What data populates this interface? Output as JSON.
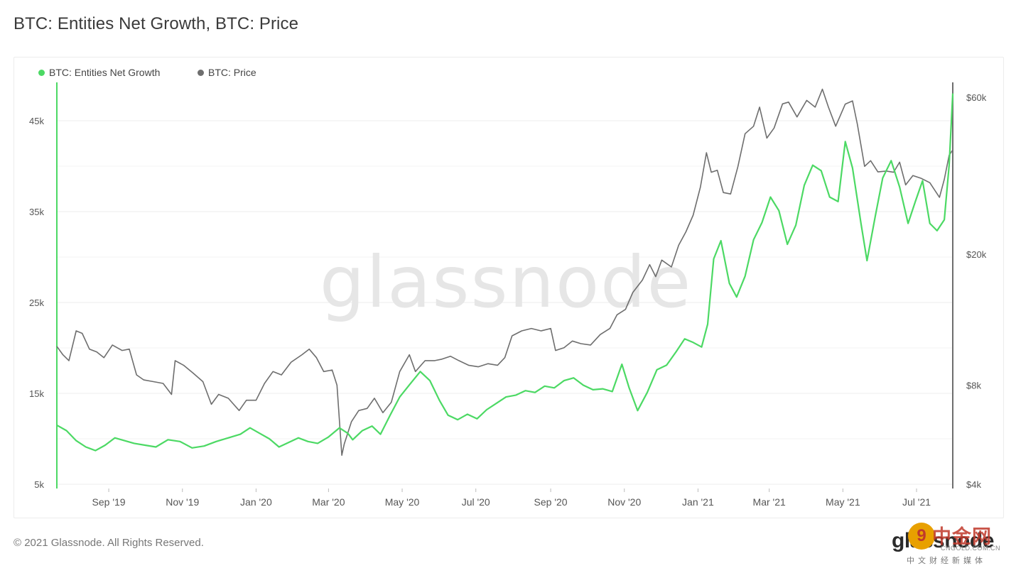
{
  "page": {
    "title": "BTC: Entities Net Growth, BTC: Price",
    "copyright": "© 2021 Glassnode. All Rights Reserved.",
    "brand_logo": "glassnode",
    "watermark_text": "glassnode"
  },
  "overlay_watermark": {
    "main": "中金网",
    "url": "CNGOLD.COM.CN",
    "sub": "中文财经新媒体"
  },
  "colors": {
    "growth": "#4cd964",
    "price": "#6e6e6e",
    "grid": "#ececec",
    "axis_text": "#555555",
    "watermark": "#e6e6e6"
  },
  "chart_data": {
    "type": "line",
    "title": "BTC: Entities Net Growth, BTC: Price",
    "legend": {
      "placement": "top-left",
      "entries": [
        "BTC: Entities Net Growth",
        "BTC: Price"
      ]
    },
    "grid": true,
    "x_ticks": [
      "Sep '19",
      "Nov '19",
      "Jan '20",
      "Mar '20",
      "May '20",
      "Jul '20",
      "Sep '20",
      "Nov '20",
      "Jan '21",
      "Mar '21",
      "May '21",
      "Jul '21"
    ],
    "x_range": [
      "2019-07-20",
      "2021-07-31"
    ],
    "y_left": {
      "ticks": [
        "5k",
        "15k",
        "25k",
        "35k",
        "45k"
      ],
      "range": [
        5000,
        50000
      ]
    },
    "y_right": {
      "ticks": [
        "$4k",
        "$8k",
        "$20k",
        "$60k"
      ],
      "scale": "log",
      "range": [
        4000,
        70000
      ]
    },
    "series": [
      {
        "name": "BTC: Entities Net Growth",
        "axis": "left",
        "points": [
          [
            "2019-07-20",
            11500
          ],
          [
            "2019-07-28",
            10900
          ],
          [
            "2019-08-05",
            9800
          ],
          [
            "2019-08-13",
            9100
          ],
          [
            "2019-08-21",
            8700
          ],
          [
            "2019-08-29",
            9300
          ],
          [
            "2019-09-06",
            10100
          ],
          [
            "2019-09-14",
            9800
          ],
          [
            "2019-09-22",
            9500
          ],
          [
            "2019-10-01",
            9300
          ],
          [
            "2019-10-10",
            9100
          ],
          [
            "2019-10-20",
            9900
          ],
          [
            "2019-10-30",
            9700
          ],
          [
            "2019-11-09",
            9000
          ],
          [
            "2019-11-19",
            9200
          ],
          [
            "2019-11-29",
            9700
          ],
          [
            "2019-12-09",
            10100
          ],
          [
            "2019-12-19",
            10500
          ],
          [
            "2019-12-27",
            11200
          ],
          [
            "2020-01-04",
            10600
          ],
          [
            "2020-01-12",
            10000
          ],
          [
            "2020-01-20",
            9100
          ],
          [
            "2020-01-28",
            9600
          ],
          [
            "2020-02-05",
            10100
          ],
          [
            "2020-02-13",
            9700
          ],
          [
            "2020-02-21",
            9500
          ],
          [
            "2020-03-01",
            10200
          ],
          [
            "2020-03-10",
            11200
          ],
          [
            "2020-03-17",
            10600
          ],
          [
            "2020-03-21",
            9900
          ],
          [
            "2020-03-29",
            10900
          ],
          [
            "2020-04-06",
            11400
          ],
          [
            "2020-04-13",
            10500
          ],
          [
            "2020-04-21",
            12600
          ],
          [
            "2020-04-29",
            14600
          ],
          [
            "2020-05-08",
            16100
          ],
          [
            "2020-05-16",
            17400
          ],
          [
            "2020-05-24",
            16400
          ],
          [
            "2020-06-01",
            14200
          ],
          [
            "2020-06-08",
            12600
          ],
          [
            "2020-06-16",
            12100
          ],
          [
            "2020-06-24",
            12700
          ],
          [
            "2020-07-02",
            12200
          ],
          [
            "2020-07-10",
            13200
          ],
          [
            "2020-07-18",
            13900
          ],
          [
            "2020-07-26",
            14600
          ],
          [
            "2020-08-03",
            14800
          ],
          [
            "2020-08-11",
            15300
          ],
          [
            "2020-08-19",
            15100
          ],
          [
            "2020-08-27",
            15800
          ],
          [
            "2020-09-04",
            15600
          ],
          [
            "2020-09-12",
            16400
          ],
          [
            "2020-09-20",
            16700
          ],
          [
            "2020-09-28",
            15900
          ],
          [
            "2020-10-06",
            15400
          ],
          [
            "2020-10-14",
            15500
          ],
          [
            "2020-10-22",
            15200
          ],
          [
            "2020-10-30",
            18200
          ],
          [
            "2020-11-05",
            15600
          ],
          [
            "2020-11-12",
            13100
          ],
          [
            "2020-11-20",
            15100
          ],
          [
            "2020-11-28",
            17600
          ],
          [
            "2020-12-06",
            18100
          ],
          [
            "2020-12-14",
            19600
          ],
          [
            "2020-12-21",
            21000
          ],
          [
            "2020-12-28",
            20600
          ],
          [
            "2021-01-04",
            20100
          ],
          [
            "2021-01-09",
            22600
          ],
          [
            "2021-01-14",
            29800
          ],
          [
            "2021-01-20",
            31800
          ],
          [
            "2021-01-27",
            27100
          ],
          [
            "2021-02-02",
            25600
          ],
          [
            "2021-02-09",
            27900
          ],
          [
            "2021-02-16",
            31900
          ],
          [
            "2021-02-23",
            33800
          ],
          [
            "2021-03-02",
            36600
          ],
          [
            "2021-03-09",
            35100
          ],
          [
            "2021-03-16",
            31400
          ],
          [
            "2021-03-23",
            33500
          ],
          [
            "2021-03-30",
            37900
          ],
          [
            "2021-04-06",
            40100
          ],
          [
            "2021-04-13",
            39500
          ],
          [
            "2021-04-20",
            36600
          ],
          [
            "2021-04-27",
            36100
          ],
          [
            "2021-05-03",
            42700
          ],
          [
            "2021-05-09",
            39800
          ],
          [
            "2021-05-16",
            33700
          ],
          [
            "2021-05-21",
            29600
          ],
          [
            "2021-05-28",
            34600
          ],
          [
            "2021-06-03",
            38700
          ],
          [
            "2021-06-10",
            40600
          ],
          [
            "2021-06-17",
            37700
          ],
          [
            "2021-06-24",
            33700
          ],
          [
            "2021-06-30",
            36100
          ],
          [
            "2021-07-06",
            38400
          ],
          [
            "2021-07-12",
            33700
          ],
          [
            "2021-07-18",
            32900
          ],
          [
            "2021-07-24",
            34100
          ],
          [
            "2021-07-28",
            40100
          ],
          [
            "2021-07-31",
            48000
          ]
        ]
      },
      {
        "name": "BTC: Price",
        "axis": "right",
        "points": [
          [
            "2019-07-20",
            10500
          ],
          [
            "2019-07-25",
            9900
          ],
          [
            "2019-07-30",
            9500
          ],
          [
            "2019-08-05",
            11700
          ],
          [
            "2019-08-10",
            11500
          ],
          [
            "2019-08-16",
            10300
          ],
          [
            "2019-08-22",
            10100
          ],
          [
            "2019-08-28",
            9700
          ],
          [
            "2019-09-04",
            10600
          ],
          [
            "2019-09-12",
            10200
          ],
          [
            "2019-09-18",
            10300
          ],
          [
            "2019-09-24",
            8600
          ],
          [
            "2019-09-30",
            8300
          ],
          [
            "2019-10-08",
            8200
          ],
          [
            "2019-10-16",
            8100
          ],
          [
            "2019-10-23",
            7500
          ],
          [
            "2019-10-26",
            9500
          ],
          [
            "2019-11-02",
            9200
          ],
          [
            "2019-11-10",
            8700
          ],
          [
            "2019-11-18",
            8200
          ],
          [
            "2019-11-25",
            7000
          ],
          [
            "2019-12-01",
            7500
          ],
          [
            "2019-12-09",
            7300
          ],
          [
            "2019-12-18",
            6700
          ],
          [
            "2019-12-24",
            7200
          ],
          [
            "2020-01-01",
            7200
          ],
          [
            "2020-01-08",
            8100
          ],
          [
            "2020-01-15",
            8800
          ],
          [
            "2020-01-22",
            8600
          ],
          [
            "2020-01-30",
            9400
          ],
          [
            "2020-02-08",
            9900
          ],
          [
            "2020-02-14",
            10300
          ],
          [
            "2020-02-20",
            9700
          ],
          [
            "2020-02-26",
            8800
          ],
          [
            "2020-03-04",
            8900
          ],
          [
            "2020-03-08",
            8000
          ],
          [
            "2020-03-12",
            4900
          ],
          [
            "2020-03-14",
            5300
          ],
          [
            "2020-03-20",
            6200
          ],
          [
            "2020-03-26",
            6700
          ],
          [
            "2020-04-02",
            6800
          ],
          [
            "2020-04-08",
            7300
          ],
          [
            "2020-04-15",
            6600
          ],
          [
            "2020-04-22",
            7100
          ],
          [
            "2020-04-29",
            8800
          ],
          [
            "2020-05-07",
            9900
          ],
          [
            "2020-05-12",
            8800
          ],
          [
            "2020-05-20",
            9500
          ],
          [
            "2020-05-28",
            9500
          ],
          [
            "2020-06-03",
            9600
          ],
          [
            "2020-06-10",
            9800
          ],
          [
            "2020-06-17",
            9500
          ],
          [
            "2020-06-25",
            9200
          ],
          [
            "2020-07-03",
            9100
          ],
          [
            "2020-07-11",
            9300
          ],
          [
            "2020-07-19",
            9200
          ],
          [
            "2020-07-25",
            9700
          ],
          [
            "2020-07-31",
            11300
          ],
          [
            "2020-08-08",
            11700
          ],
          [
            "2020-08-16",
            11900
          ],
          [
            "2020-08-24",
            11700
          ],
          [
            "2020-09-01",
            11900
          ],
          [
            "2020-09-05",
            10200
          ],
          [
            "2020-09-12",
            10400
          ],
          [
            "2020-09-19",
            10900
          ],
          [
            "2020-09-26",
            10700
          ],
          [
            "2020-10-04",
            10600
          ],
          [
            "2020-10-12",
            11400
          ],
          [
            "2020-10-20",
            11900
          ],
          [
            "2020-10-26",
            13100
          ],
          [
            "2020-11-02",
            13600
          ],
          [
            "2020-11-08",
            15300
          ],
          [
            "2020-11-16",
            16700
          ],
          [
            "2020-11-22",
            18600
          ],
          [
            "2020-11-27",
            17100
          ],
          [
            "2020-12-02",
            19200
          ],
          [
            "2020-12-10",
            18300
          ],
          [
            "2020-12-16",
            21300
          ],
          [
            "2020-12-22",
            23400
          ],
          [
            "2020-12-28",
            26300
          ],
          [
            "2021-01-03",
            32000
          ],
          [
            "2021-01-08",
            40700
          ],
          [
            "2021-01-12",
            35500
          ],
          [
            "2021-01-17",
            36000
          ],
          [
            "2021-01-22",
            30800
          ],
          [
            "2021-01-28",
            30500
          ],
          [
            "2021-02-03",
            36900
          ],
          [
            "2021-02-09",
            46500
          ],
          [
            "2021-02-16",
            49000
          ],
          [
            "2021-02-21",
            56000
          ],
          [
            "2021-02-27",
            45100
          ],
          [
            "2021-03-05",
            48400
          ],
          [
            "2021-03-12",
            57300
          ],
          [
            "2021-03-17",
            58000
          ],
          [
            "2021-03-24",
            52300
          ],
          [
            "2021-04-01",
            58700
          ],
          [
            "2021-04-08",
            56000
          ],
          [
            "2021-04-14",
            63500
          ],
          [
            "2021-04-19",
            56000
          ],
          [
            "2021-04-25",
            49000
          ],
          [
            "2021-05-03",
            57200
          ],
          [
            "2021-05-09",
            58500
          ],
          [
            "2021-05-13",
            49700
          ],
          [
            "2021-05-19",
            37000
          ],
          [
            "2021-05-24",
            38500
          ],
          [
            "2021-05-30",
            35600
          ],
          [
            "2021-06-06",
            35800
          ],
          [
            "2021-06-12",
            35500
          ],
          [
            "2021-06-17",
            38100
          ],
          [
            "2021-06-22",
            32500
          ],
          [
            "2021-06-28",
            34700
          ],
          [
            "2021-07-05",
            34000
          ],
          [
            "2021-07-12",
            33000
          ],
          [
            "2021-07-20",
            29800
          ],
          [
            "2021-07-24",
            33800
          ],
          [
            "2021-07-28",
            40000
          ],
          [
            "2021-07-31",
            41500
          ]
        ]
      }
    ]
  }
}
